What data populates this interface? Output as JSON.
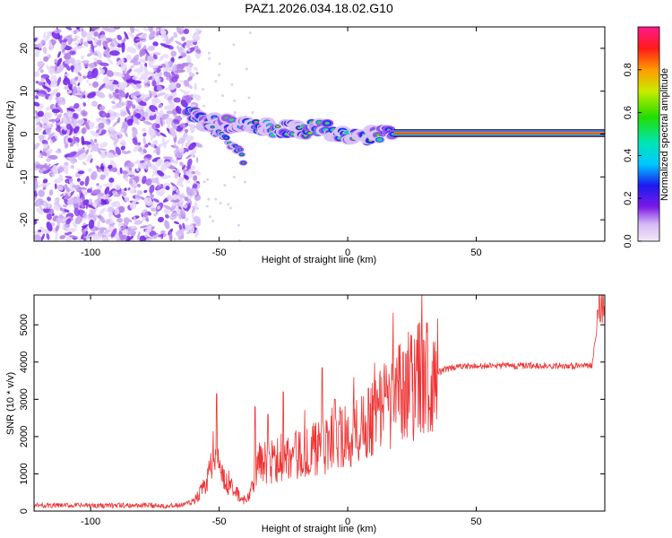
{
  "title": "PAZ1.2026.034.18.02.G10",
  "chart_data": [
    {
      "type": "heatmap",
      "xlabel": "Height of straight line (km)",
      "ylabel": "Frequency (Hz)",
      "xlim": [
        -122,
        100
      ],
      "ylim": [
        -25,
        25
      ],
      "xticks": [
        -100,
        -50,
        0,
        50
      ],
      "yticks": [
        -20,
        -10,
        0,
        10,
        20
      ],
      "colorbar": {
        "label": "Normalized spectral amplitude",
        "range": [
          0,
          1
        ],
        "ticks": [
          0.0,
          0.2,
          0.4,
          0.6,
          0.8
        ]
      },
      "ridge": [
        {
          "x": -62,
          "y": 5
        },
        {
          "x": -55,
          "y": 3
        },
        {
          "x": -48,
          "y": 2.5
        },
        {
          "x": -40,
          "y": 1.5
        },
        {
          "x": -35,
          "y": 1.5
        },
        {
          "x": -20,
          "y": 1
        },
        {
          "x": -10,
          "y": 1.5
        },
        {
          "x": 0,
          "y": -1
        },
        {
          "x": 10,
          "y": -0.5
        },
        {
          "x": 18,
          "y": 0
        },
        {
          "x": 100,
          "y": 0
        }
      ],
      "branch": [
        {
          "x": -55,
          "y": 2
        },
        {
          "x": -48,
          "y": -1
        },
        {
          "x": -42,
          "y": -4
        },
        {
          "x": -40,
          "y": -7
        }
      ],
      "noise_region": {
        "x_from": -122,
        "x_to": -62,
        "description": "scattered low-amplitude noise"
      }
    },
    {
      "type": "line",
      "xlabel": "Height of straight line (km)",
      "ylabel": "SNR (10 * v/v)",
      "xlim": [
        -122,
        100
      ],
      "ylim": [
        0,
        5800
      ],
      "xticks": [
        -100,
        -50,
        0,
        50
      ],
      "yticks": [
        0,
        1000,
        2000,
        3000,
        4000,
        5000
      ],
      "series": [
        {
          "name": "SNR",
          "color": "#ee3333",
          "envelope": [
            {
              "x": -122,
              "y": 150
            },
            {
              "x": -65,
              "y": 150
            },
            {
              "x": -60,
              "y": 250
            },
            {
              "x": -55,
              "y": 700
            },
            {
              "x": -52,
              "y": 1400
            },
            {
              "x": -50,
              "y": 1300
            },
            {
              "x": -48,
              "y": 800
            },
            {
              "x": -45,
              "y": 600
            },
            {
              "x": -40,
              "y": 250
            },
            {
              "x": -37,
              "y": 600
            },
            {
              "x": -35,
              "y": 1400
            },
            {
              "x": -30,
              "y": 1300
            },
            {
              "x": -20,
              "y": 1500
            },
            {
              "x": -10,
              "y": 1700
            },
            {
              "x": 0,
              "y": 2000
            },
            {
              "x": 10,
              "y": 2600
            },
            {
              "x": 20,
              "y": 3200
            },
            {
              "x": 30,
              "y": 3600
            },
            {
              "x": 40,
              "y": 3850
            },
            {
              "x": 50,
              "y": 3900
            },
            {
              "x": 95,
              "y": 3900
            },
            {
              "x": 98,
              "y": 5500
            }
          ],
          "spikes": [
            {
              "x": -51,
              "y": 3150
            },
            {
              "x": -36,
              "y": 2800
            },
            {
              "x": -31,
              "y": 2600
            },
            {
              "x": -25,
              "y": 3200
            },
            {
              "x": -10,
              "y": 3850
            },
            {
              "x": -5,
              "y": 3000
            },
            {
              "x": 8,
              "y": 3300
            }
          ]
        }
      ]
    }
  ]
}
